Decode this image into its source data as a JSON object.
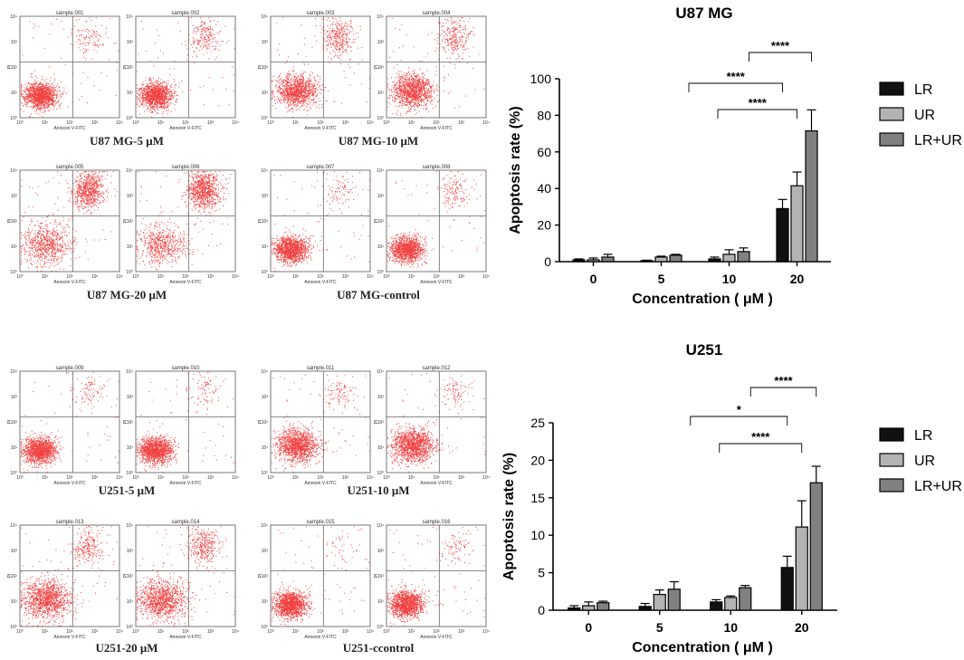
{
  "flow_panels": {
    "groups": [
      {
        "cell_line": "U87 MG",
        "plots": [
          {
            "sample": "sample.001",
            "pattern": "low",
            "q2": 0.06
          },
          {
            "sample": "sample.002",
            "pattern": "low",
            "q2": 0.12
          },
          {
            "sample": "sample.003",
            "pattern": "mid",
            "q2": 0.22
          },
          {
            "sample": "sample.004",
            "pattern": "mid",
            "q2": 0.18
          },
          {
            "sample": "sample.005",
            "pattern": "high",
            "q2": 0.45
          },
          {
            "sample": "sample.006",
            "pattern": "high",
            "q2": 0.55
          },
          {
            "sample": "sample.007",
            "pattern": "control",
            "q2": 0.04
          },
          {
            "sample": "sample.008",
            "pattern": "control",
            "q2": 0.08
          }
        ],
        "captions": [
          "U87 MG-5 μM",
          "U87 MG-10 μM",
          "U87 MG-20 μM",
          "U87 MG-control"
        ]
      },
      {
        "cell_line": "U251",
        "plots": [
          {
            "sample": "sample.009",
            "pattern": "low",
            "q2": 0.05
          },
          {
            "sample": "sample.010",
            "pattern": "low",
            "q2": 0.05
          },
          {
            "sample": "sample.011",
            "pattern": "mid",
            "q2": 0.06
          },
          {
            "sample": "sample.012",
            "pattern": "mid",
            "q2": 0.06
          },
          {
            "sample": "sample.013",
            "pattern": "high",
            "q2": 0.15
          },
          {
            "sample": "sample.014",
            "pattern": "high",
            "q2": 0.22
          },
          {
            "sample": "sample.015",
            "pattern": "control",
            "q2": 0.02
          },
          {
            "sample": "sample.016",
            "pattern": "control",
            "q2": 0.04
          }
        ],
        "captions": [
          "U251-5 μM",
          "U251-10 μM",
          "U251-20 μM",
          "U251-ccontrol"
        ]
      }
    ],
    "x_axis_label": "Annexin V-FITC",
    "y_axis_label": "PI",
    "tick_labels": [
      "10⁰",
      "10¹",
      "10²",
      "10³",
      "10⁴"
    ]
  },
  "chart_data": [
    {
      "type": "bar",
      "title": "U87 MG",
      "xlabel": "Concentration ( μM )",
      "ylabel": "Apoptosis rate  (%)",
      "categories": [
        "0",
        "5",
        "10",
        "20"
      ],
      "ylim": [
        0,
        100
      ],
      "yticks": [
        0,
        20,
        40,
        60,
        80,
        100
      ],
      "series": [
        {
          "name": "LR",
          "color": "#111111",
          "values": [
            1,
            0.5,
            1.5,
            29
          ],
          "errors": [
            0.5,
            0.3,
            1,
            5
          ]
        },
        {
          "name": "UR",
          "color": "#b3b3b3",
          "values": [
            1,
            2.5,
            4,
            41.5
          ],
          "errors": [
            1,
            0.5,
            2.5,
            7.5
          ]
        },
        {
          "name": "LR+UR",
          "color": "#808080",
          "values": [
            2.5,
            3.5,
            5.5,
            71.5
          ],
          "errors": [
            1.5,
            0.5,
            2,
            11.5
          ]
        }
      ],
      "significance": [
        {
          "from": [
            3,
            0
          ],
          "to": [
            1,
            1
          ],
          "label": "****"
        },
        {
          "from": [
            1,
            2
          ],
          "to": [
            3,
            1
          ],
          "label": "****"
        },
        {
          "from": [
            2,
            2
          ],
          "to": [
            3,
            2
          ],
          "label": "****"
        }
      ]
    },
    {
      "type": "bar",
      "title": "U251",
      "xlabel": "Concentration ( μM )",
      "ylabel": "Apoptosis rate  (%)",
      "categories": [
        "0",
        "5",
        "10",
        "20"
      ],
      "ylim": [
        0,
        25
      ],
      "yticks": [
        0,
        5,
        10,
        15,
        20,
        25
      ],
      "series": [
        {
          "name": "LR",
          "color": "#111111",
          "values": [
            0.3,
            0.5,
            1.1,
            5.7
          ],
          "errors": [
            0.3,
            0.4,
            0.3,
            1.5
          ]
        },
        {
          "name": "UR",
          "color": "#b3b3b3",
          "values": [
            0.6,
            2.1,
            1.7,
            11.1
          ],
          "errors": [
            0.5,
            0.6,
            0.2,
            3.5
          ]
        },
        {
          "name": "LR+UR",
          "color": "#808080",
          "values": [
            1,
            2.8,
            3,
            17
          ],
          "errors": [
            0.2,
            1,
            0.3,
            2.2
          ]
        }
      ],
      "significance": [
        {
          "from": [
            3,
            0
          ],
          "to": [
            1,
            1
          ],
          "label": "*"
        },
        {
          "from": [
            1,
            2
          ],
          "to": [
            3,
            1
          ],
          "label": "****"
        },
        {
          "from": [
            2,
            2
          ],
          "to": [
            3,
            2
          ],
          "label": "****"
        }
      ]
    }
  ]
}
